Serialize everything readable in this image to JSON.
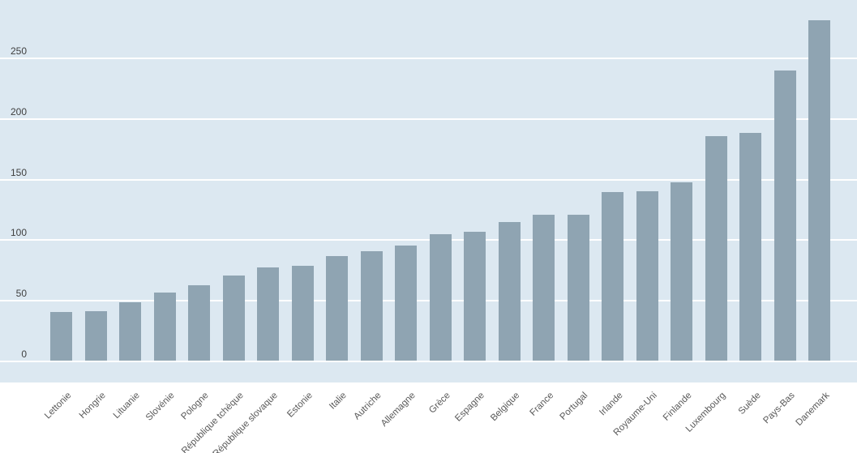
{
  "chart_data": {
    "type": "bar",
    "title": "",
    "xlabel": "",
    "ylabel": "",
    "categories": [
      "Lettonie",
      "Hongrie",
      "Lituanie",
      "Slovénie",
      "Pologne",
      "République tchèque",
      "République slovaque",
      "Estonie",
      "Italie",
      "Autriche",
      "Allemagne",
      "Grèce",
      "Espagne",
      "Belgique",
      "France",
      "Portugal",
      "Irlande",
      "Royaume-Uni",
      "Finlande",
      "Luxembourg",
      "Suède",
      "Pays-Bas",
      "Danemark"
    ],
    "values": [
      40,
      41,
      48,
      56,
      62,
      70,
      77,
      78,
      86,
      90,
      95,
      104,
      106,
      114,
      120,
      120,
      139,
      140,
      147,
      185,
      188,
      239,
      281
    ],
    "yticks": [
      0,
      50,
      100,
      150,
      200,
      250
    ],
    "ylim": [
      0,
      298
    ],
    "grid": "horizontal-white-gridlines",
    "legend": "none",
    "bar_sort": "ascending",
    "category_label_rotation_deg": 45,
    "colors": {
      "bar": "#8fa4b2",
      "plot_background": "#dce8f1",
      "gridline": "#ffffff",
      "page_background": "#ffffff",
      "ytick_text": "#404040",
      "category_text": "#595959"
    }
  }
}
